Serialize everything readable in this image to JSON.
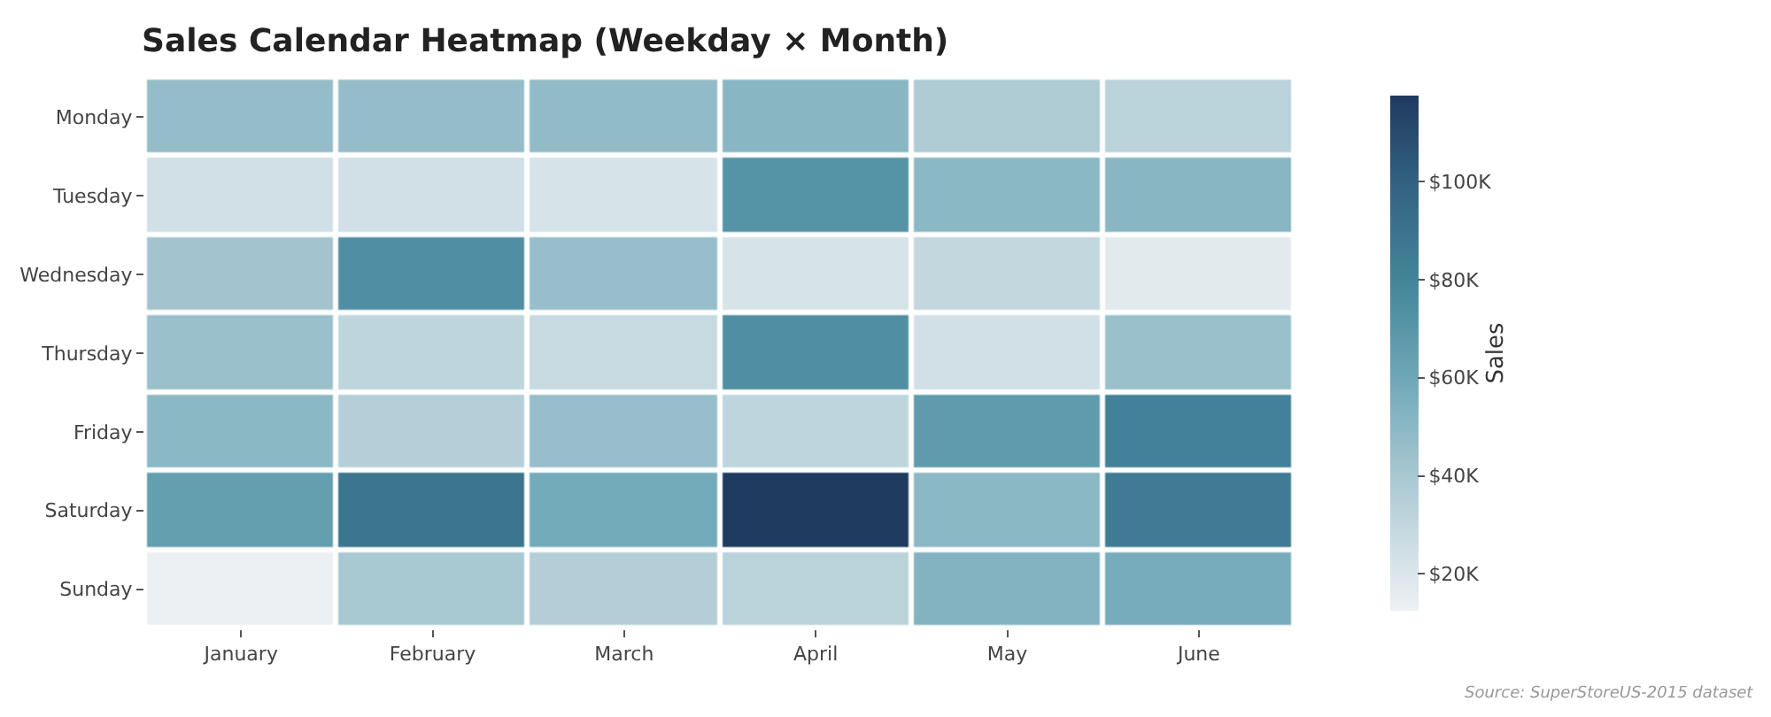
{
  "chart_data": {
    "type": "heatmap",
    "title": "Sales Calendar Heatmap (Weekday × Month)",
    "categories": [
      "January",
      "February",
      "March",
      "April",
      "May",
      "June"
    ],
    "y_categories": [
      "Monday",
      "Tuesday",
      "Wednesday",
      "Thursday",
      "Friday",
      "Saturday",
      "Sunday"
    ],
    "cells": [
      [
        47000,
        47000,
        48000,
        51000,
        38000,
        33000
      ],
      [
        24000,
        24000,
        22000,
        72000,
        50000,
        51000
      ],
      [
        42000,
        74000,
        46000,
        22000,
        30000,
        17000
      ],
      [
        45000,
        31000,
        28000,
        74000,
        24000,
        45000
      ],
      [
        50000,
        35000,
        46000,
        31000,
        67000,
        82000
      ],
      [
        65000,
        89000,
        58000,
        117000,
        50000,
        85000
      ],
      [
        13000,
        40000,
        36000,
        33000,
        53000,
        57000
      ]
    ],
    "clabel": "Sales",
    "clim": [
      12500,
      117500
    ],
    "cticks": [
      {
        "value": 20000,
        "label": "$20K"
      },
      {
        "value": 40000,
        "label": "$40K"
      },
      {
        "value": 60000,
        "label": "$60K"
      },
      {
        "value": 80000,
        "label": "$80K"
      },
      {
        "value": 100000,
        "label": "$100K"
      }
    ],
    "annotations": [
      "Source: SuperStoreUS-2015 dataset"
    ]
  }
}
